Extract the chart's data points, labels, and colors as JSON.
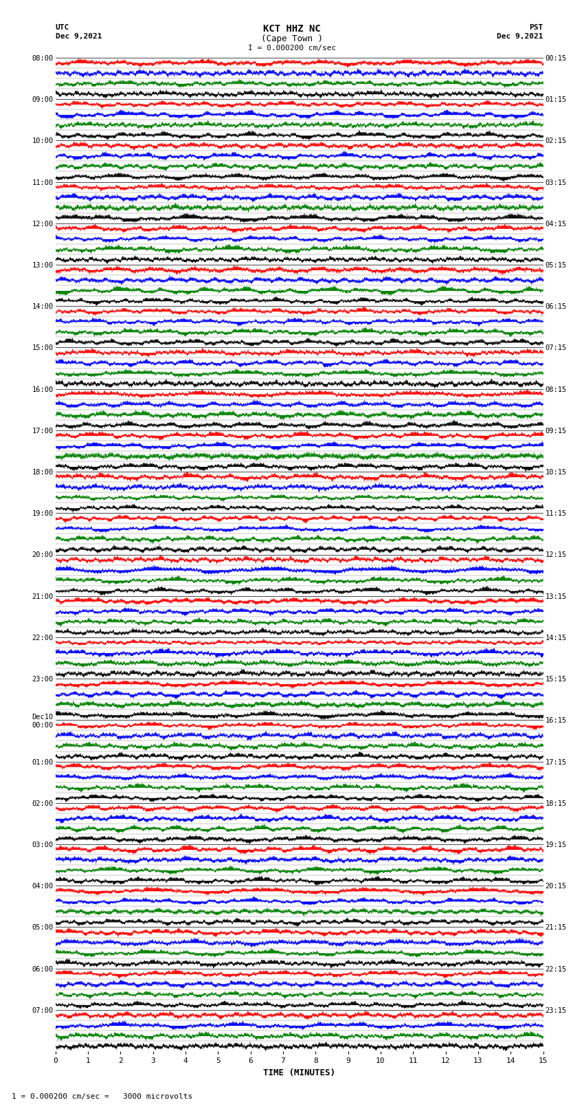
{
  "title_line1": "KCT HHZ NC",
  "title_line2": "(Cape Town )",
  "title_scale": "I = 0.000200 cm/sec",
  "left_header": "UTC",
  "left_date": "Dec 9,2021",
  "right_header": "PST",
  "right_date": "Dec 9,2021",
  "footer": "1 = 0.000200 cm/sec =   3000 microvolts",
  "xlabel": "TIME (MINUTES)",
  "utc_times": [
    "08:00",
    "09:00",
    "10:00",
    "11:00",
    "12:00",
    "13:00",
    "14:00",
    "15:00",
    "16:00",
    "17:00",
    "18:00",
    "19:00",
    "20:00",
    "21:00",
    "22:00",
    "23:00",
    "Dec10\n00:00",
    "01:00",
    "02:00",
    "03:00",
    "04:00",
    "05:00",
    "06:00",
    "07:00"
  ],
  "pst_times": [
    "00:15",
    "01:15",
    "02:15",
    "03:15",
    "04:15",
    "05:15",
    "06:15",
    "07:15",
    "08:15",
    "09:15",
    "10:15",
    "11:15",
    "12:15",
    "13:15",
    "14:15",
    "15:15",
    "16:15",
    "17:15",
    "18:15",
    "19:15",
    "20:15",
    "21:15",
    "22:15",
    "23:15"
  ],
  "num_rows": 24,
  "minutes_per_row": 15,
  "bg_color": "#ffffff",
  "colors": [
    "red",
    "blue",
    "green",
    "black"
  ],
  "seed": 42
}
